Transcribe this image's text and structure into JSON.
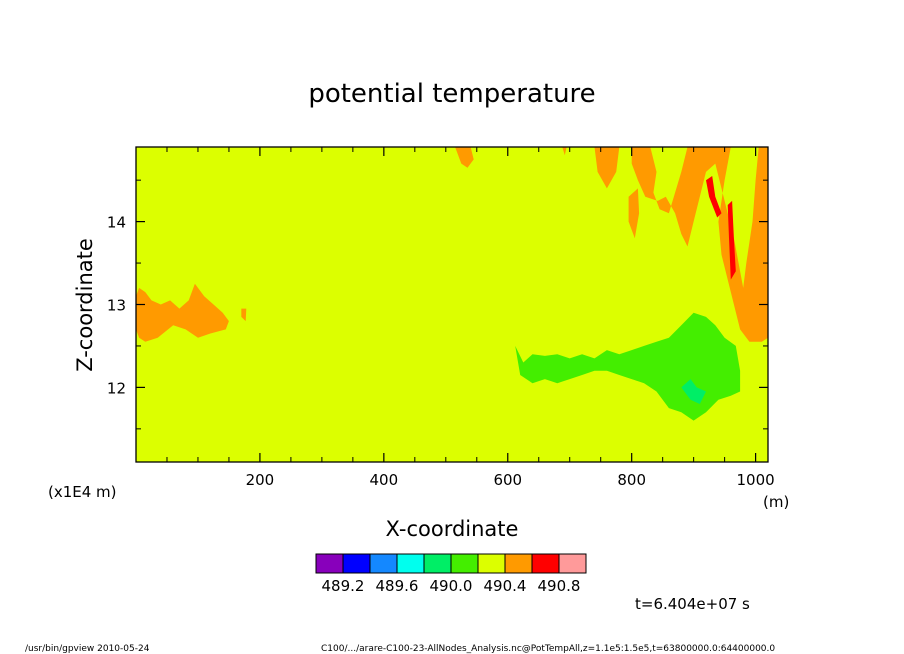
{
  "chart_data": {
    "type": "heatmap",
    "title": "potential temperature",
    "xlabel": "X-coordinate",
    "ylabel": "Z-coordinate",
    "x_unit": "(m)",
    "y_unit": "(x1E4 m)",
    "xlim": [
      0,
      1020
    ],
    "ylim": [
      11.1,
      14.9
    ],
    "x_ticks": [
      200,
      400,
      600,
      800,
      1000
    ],
    "y_ticks": [
      12,
      13,
      14
    ],
    "x_tick_labels": [
      "200",
      "400",
      "600",
      "800",
      "1000"
    ],
    "y_tick_labels": [
      "12",
      "13",
      "14"
    ],
    "background_value_range": [
      490.2,
      490.4
    ],
    "background_color": "#dcff00",
    "color_levels": [
      {
        "color": "#8800bb"
      },
      {
        "color": "#0000ff"
      },
      {
        "color": "#1488ff"
      },
      {
        "color": "#00ffee"
      },
      {
        "color": "#00ee66"
      },
      {
        "color": "#44ee00"
      },
      {
        "color": "#dcff00"
      },
      {
        "color": "#ff9a00"
      },
      {
        "color": "#ff0000"
      },
      {
        "color": "#ff9a9a"
      }
    ],
    "colorbar_labels": [
      "489.2",
      "489.6",
      "490.0",
      "490.4",
      "490.8"
    ],
    "regions": [
      {
        "level": 7,
        "points": [
          [
            0,
            13.1
          ],
          [
            5,
            13.2
          ],
          [
            15,
            13.15
          ],
          [
            25,
            13.05
          ],
          [
            40,
            13.0
          ],
          [
            55,
            13.05
          ],
          [
            70,
            12.95
          ],
          [
            85,
            13.05
          ],
          [
            95,
            13.25
          ],
          [
            110,
            13.1
          ],
          [
            125,
            13.0
          ],
          [
            140,
            12.9
          ],
          [
            150,
            12.8
          ],
          [
            145,
            12.7
          ],
          [
            120,
            12.65
          ],
          [
            100,
            12.6
          ],
          [
            80,
            12.7
          ],
          [
            60,
            12.75
          ],
          [
            35,
            12.6
          ],
          [
            15,
            12.55
          ],
          [
            5,
            12.6
          ],
          [
            0,
            12.7
          ]
        ]
      },
      {
        "level": 7,
        "points": [
          [
            170,
            12.95
          ],
          [
            178,
            12.95
          ],
          [
            177,
            12.8
          ],
          [
            170,
            12.85
          ]
        ]
      },
      {
        "level": 7,
        "points": [
          [
            515,
            14.9
          ],
          [
            540,
            14.9
          ],
          [
            545,
            14.75
          ],
          [
            535,
            14.65
          ],
          [
            525,
            14.7
          ]
        ]
      },
      {
        "level": 7,
        "points": [
          [
            688,
            14.9
          ],
          [
            695,
            14.9
          ],
          [
            692,
            14.8
          ]
        ]
      },
      {
        "level": 7,
        "points": [
          [
            740,
            14.9
          ],
          [
            780,
            14.9
          ],
          [
            775,
            14.6
          ],
          [
            760,
            14.4
          ],
          [
            745,
            14.6
          ]
        ]
      },
      {
        "level": 7,
        "points": [
          [
            800,
            14.9
          ],
          [
            830,
            14.9
          ],
          [
            840,
            14.6
          ],
          [
            835,
            14.35
          ],
          [
            845,
            14.15
          ],
          [
            860,
            14.1
          ],
          [
            880,
            14.6
          ],
          [
            890,
            14.9
          ],
          [
            960,
            14.9
          ],
          [
            950,
            14.5
          ],
          [
            940,
            14.0
          ],
          [
            945,
            13.6
          ],
          [
            955,
            13.3
          ],
          [
            965,
            13.0
          ],
          [
            975,
            12.7
          ],
          [
            990,
            12.55
          ],
          [
            1010,
            12.55
          ],
          [
            1020,
            12.6
          ],
          [
            1020,
            14.9
          ],
          [
            1005,
            14.9
          ],
          [
            1000,
            14.5
          ],
          [
            995,
            14.0
          ],
          [
            985,
            13.5
          ],
          [
            980,
            13.2
          ],
          [
            975,
            13.4
          ],
          [
            965,
            13.8
          ],
          [
            955,
            14.1
          ],
          [
            945,
            14.4
          ],
          [
            935,
            14.7
          ],
          [
            920,
            14.6
          ],
          [
            910,
            14.3
          ],
          [
            900,
            14.0
          ],
          [
            890,
            13.7
          ],
          [
            880,
            13.85
          ],
          [
            870,
            14.1
          ],
          [
            855,
            14.3
          ],
          [
            842,
            14.25
          ],
          [
            822,
            14.3
          ],
          [
            810,
            14.5
          ],
          [
            800,
            14.7
          ]
        ]
      },
      {
        "level": 7,
        "points": [
          [
            795,
            14.3
          ],
          [
            810,
            14.4
          ],
          [
            812,
            14.1
          ],
          [
            805,
            13.8
          ],
          [
            795,
            14.0
          ]
        ]
      },
      {
        "level": 5,
        "points": [
          [
            612,
            12.5
          ],
          [
            625,
            12.3
          ],
          [
            640,
            12.4
          ],
          [
            660,
            12.38
          ],
          [
            680,
            12.4
          ],
          [
            700,
            12.35
          ],
          [
            720,
            12.4
          ],
          [
            740,
            12.35
          ],
          [
            760,
            12.45
          ],
          [
            780,
            12.4
          ],
          [
            800,
            12.45
          ],
          [
            820,
            12.5
          ],
          [
            840,
            12.55
          ],
          [
            860,
            12.6
          ],
          [
            880,
            12.75
          ],
          [
            900,
            12.9
          ],
          [
            920,
            12.85
          ],
          [
            935,
            12.75
          ],
          [
            950,
            12.6
          ],
          [
            968,
            12.5
          ],
          [
            975,
            12.2
          ],
          [
            975,
            11.95
          ],
          [
            960,
            11.9
          ],
          [
            940,
            11.85
          ],
          [
            920,
            11.7
          ],
          [
            900,
            11.6
          ],
          [
            880,
            11.7
          ],
          [
            860,
            11.75
          ],
          [
            840,
            11.95
          ],
          [
            820,
            12.05
          ],
          [
            800,
            12.1
          ],
          [
            780,
            12.15
          ],
          [
            760,
            12.2
          ],
          [
            740,
            12.2
          ],
          [
            720,
            12.15
          ],
          [
            700,
            12.1
          ],
          [
            680,
            12.05
          ],
          [
            660,
            12.1
          ],
          [
            640,
            12.05
          ],
          [
            620,
            12.15
          ]
        ]
      },
      {
        "level": 4,
        "points": [
          [
            880,
            12.0
          ],
          [
            895,
            12.1
          ],
          [
            905,
            12.0
          ],
          [
            920,
            11.95
          ],
          [
            910,
            11.8
          ],
          [
            895,
            11.85
          ]
        ]
      },
      {
        "level": 8,
        "points": [
          [
            920,
            14.5
          ],
          [
            930,
            14.55
          ],
          [
            935,
            14.3
          ],
          [
            945,
            14.1
          ],
          [
            938,
            14.05
          ],
          [
            925,
            14.3
          ]
        ]
      },
      {
        "level": 8,
        "points": [
          [
            955,
            14.2
          ],
          [
            962,
            14.25
          ],
          [
            965,
            13.8
          ],
          [
            968,
            13.4
          ],
          [
            960,
            13.3
          ],
          [
            957,
            13.8
          ]
        ]
      }
    ]
  },
  "page": {
    "time_label": "t=6.404e+07 s",
    "footer_left": "/usr/bin/gpview   2010-05-24",
    "footer_right": "C100/.../arare-C100-23-AllNodes_Analysis.nc@PotTempAll,z=1.1e5:1.5e5,t=63800000.0:64400000.0"
  }
}
